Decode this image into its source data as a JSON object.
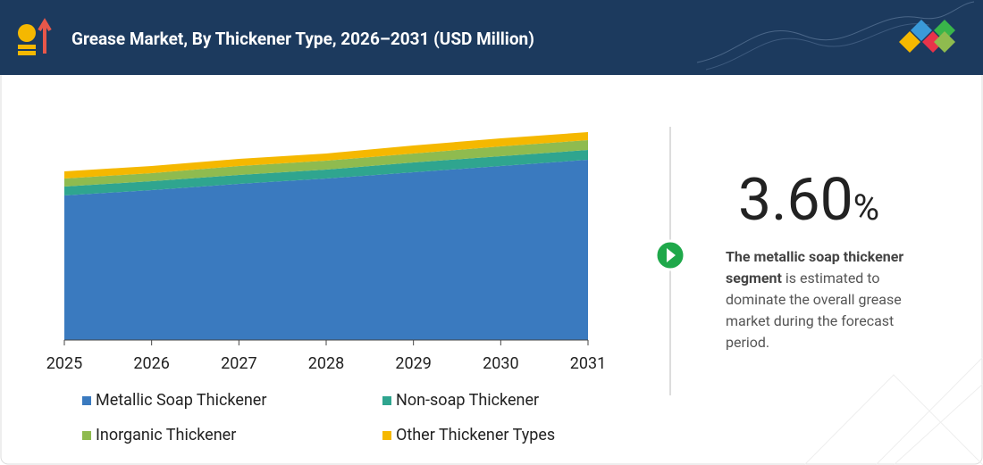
{
  "header": {
    "title": "Grease Market, By Thickener Type, 2026–2031 (USD Million)"
  },
  "callout": {
    "value": "3.60",
    "unit": "%",
    "bold": "The metallic soap thickener segment",
    "text": " is estimated to dominate the overall grease market during the forecast period."
  },
  "chart_data": {
    "type": "stacked-area",
    "categories": [
      "2025",
      "2026",
      "2027",
      "2028",
      "2029",
      "2030",
      "2031"
    ],
    "ylim": [
      0,
      240
    ],
    "series": [
      {
        "name": "Metallic Soap Thickener",
        "color": "#3a7abf",
        "values": [
          162,
          168,
          175,
          181,
          188,
          195,
          202
        ]
      },
      {
        "name": "Non-soap Thickener",
        "color": "#2fa58f",
        "values": [
          10,
          10,
          10,
          10,
          11,
          11,
          11
        ]
      },
      {
        "name": "Inorganic Thickener",
        "color": "#8fbb4f",
        "values": [
          9,
          9,
          10,
          10,
          10,
          11,
          11
        ]
      },
      {
        "name": "Other Thickener Types",
        "color": "#f5b800",
        "values": [
          8,
          8,
          8,
          8,
          9,
          9,
          9
        ]
      }
    ]
  }
}
